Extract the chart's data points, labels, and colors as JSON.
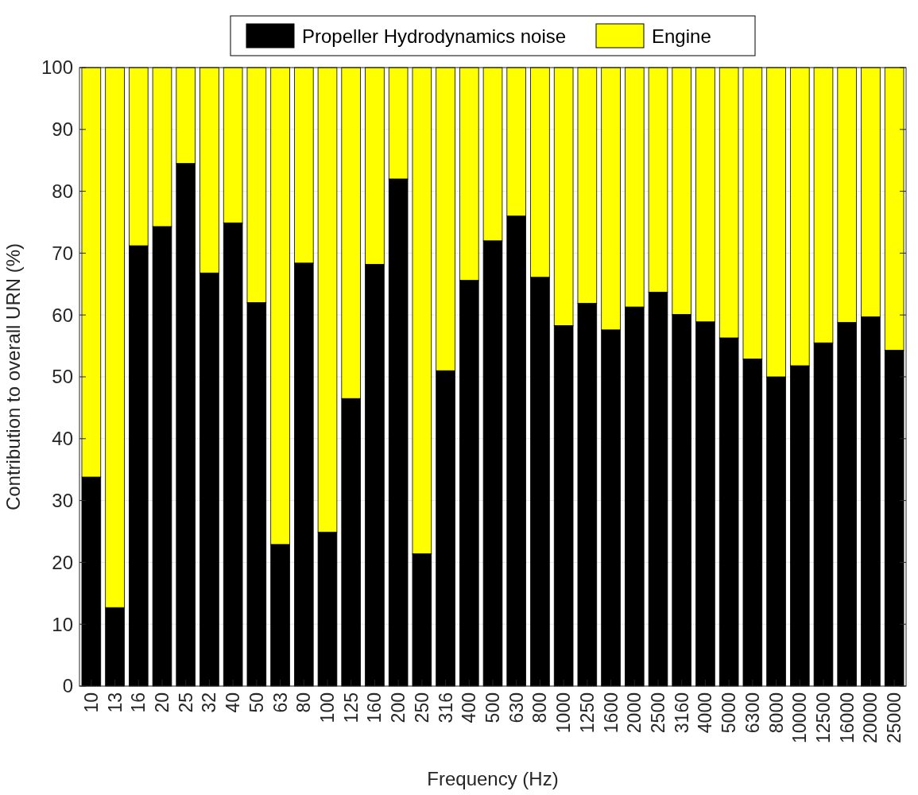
{
  "chart_data": {
    "type": "bar",
    "stacked": true,
    "xlabel": "Frequency (Hz)",
    "ylabel": "Contribution to overall URN (%)",
    "categories": [
      "10",
      "13",
      "16",
      "20",
      "25",
      "32",
      "40",
      "50",
      "63",
      "80",
      "100",
      "125",
      "160",
      "200",
      "250",
      "316",
      "400",
      "500",
      "630",
      "800",
      "1000",
      "1250",
      "1600",
      "2000",
      "2500",
      "3160",
      "4000",
      "5000",
      "6300",
      "8000",
      "10000",
      "12500",
      "16000",
      "20000",
      "25000"
    ],
    "series": [
      {
        "name": "Propeller Hydrodynamics noise",
        "color": "#000000",
        "values": [
          33.8,
          12.7,
          71.2,
          74.3,
          84.5,
          66.8,
          74.9,
          62,
          22.9,
          68.4,
          24.9,
          46.5,
          68.2,
          82,
          21.4,
          51,
          65.6,
          72,
          76,
          66.1,
          58.3,
          61.9,
          57.6,
          61.3,
          63.7,
          60.1,
          58.9,
          56.3,
          52.9,
          50,
          51.8,
          55.5,
          58.8,
          59.7,
          54.3
        ]
      },
      {
        "name": "Engine",
        "color": "#ffff00",
        "values": [
          66.2,
          87.3,
          28.8,
          25.7,
          15.5,
          33.2,
          25.1,
          38,
          77.1,
          31.6,
          75.1,
          53.5,
          31.8,
          18,
          78.6,
          49,
          34.4,
          28,
          24,
          33.9,
          41.7,
          38.1,
          42.4,
          38.7,
          36.3,
          39.9,
          41.1,
          43.7,
          47.1,
          50,
          48.2,
          44.5,
          41.2,
          40.3,
          45.7
        ]
      }
    ],
    "ylim": [
      0,
      100
    ],
    "yticks": [
      0,
      10,
      20,
      30,
      40,
      50,
      60,
      70,
      80,
      90,
      100
    ],
    "grid": "y",
    "legend": "top"
  }
}
